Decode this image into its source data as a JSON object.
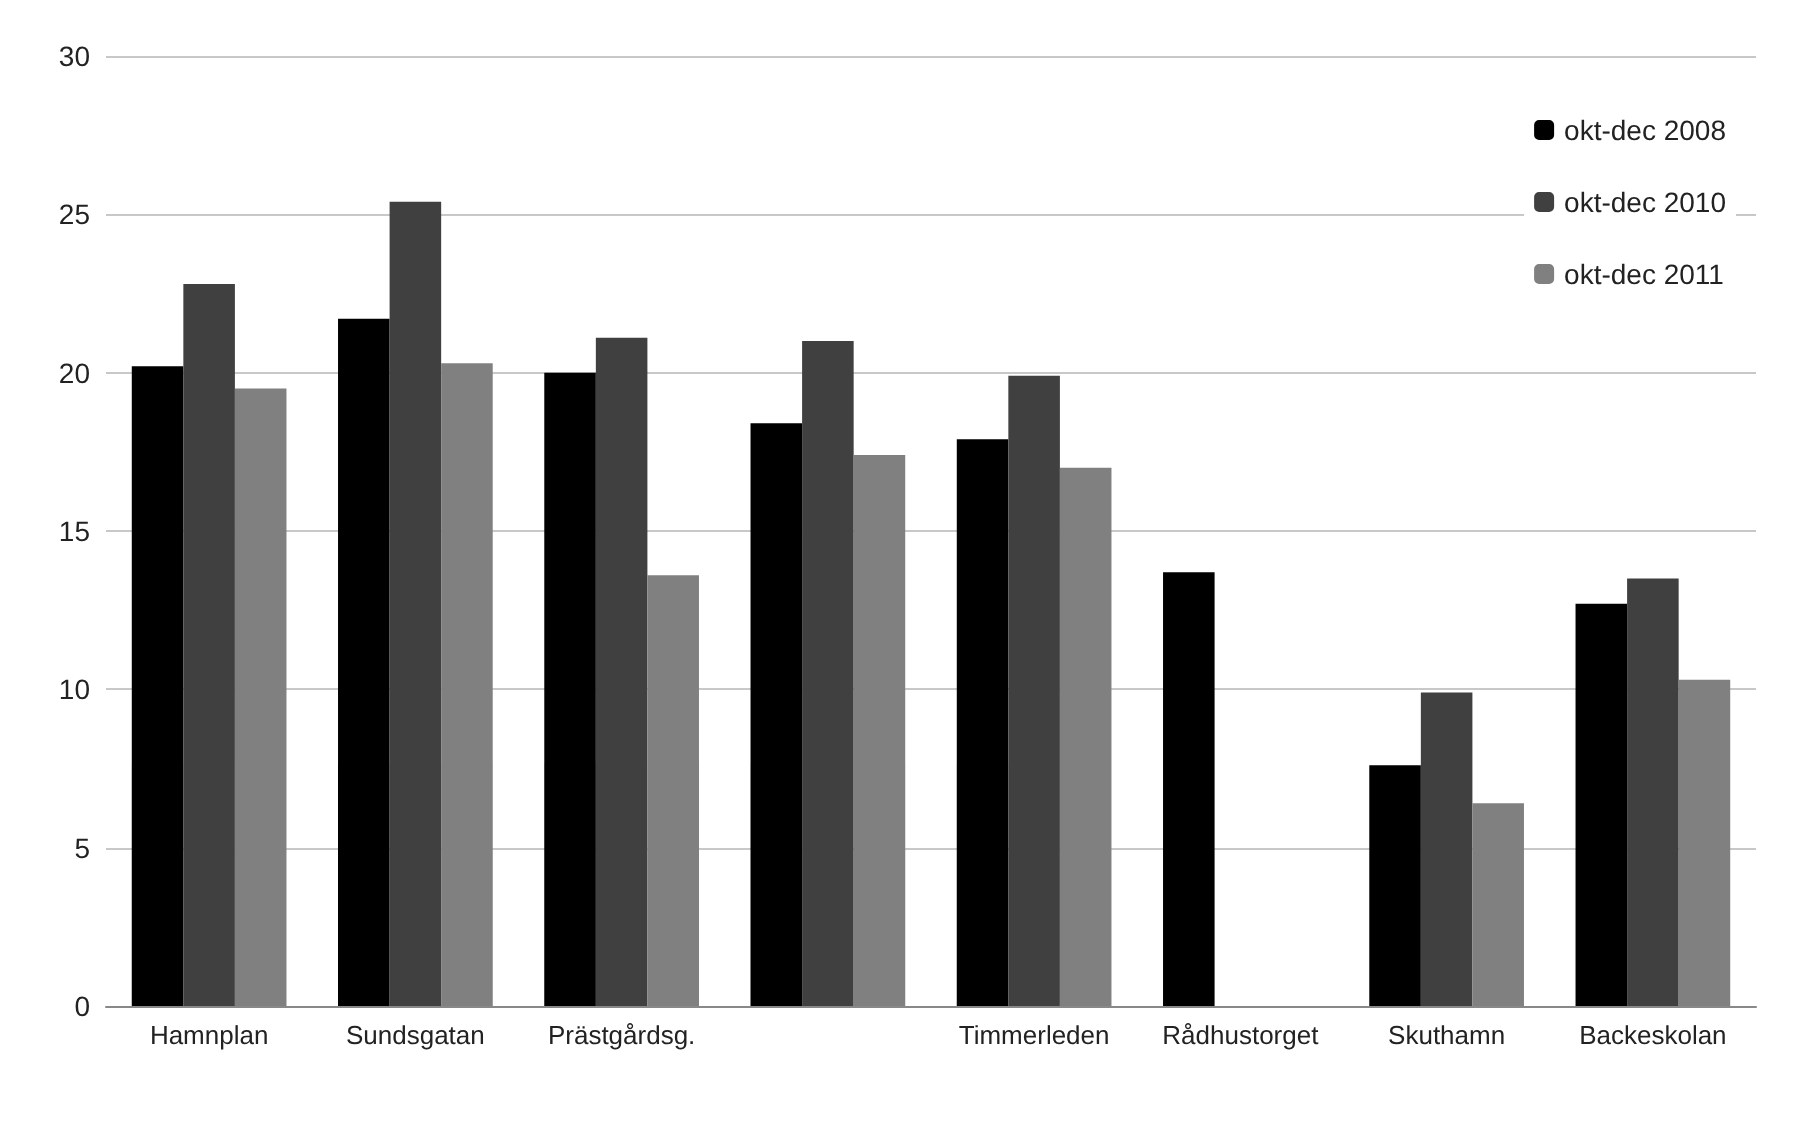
{
  "chart_data": {
    "type": "bar",
    "categories": [
      "Hamnplan",
      "Sundsgatan",
      "Prästgårdsg.",
      null,
      "Timmerleden",
      "Rådhustorget",
      "Skuthamn",
      "Backeskolan"
    ],
    "series": [
      {
        "name": "okt-dec 2008",
        "color": "#000000",
        "values": [
          20.2,
          21.7,
          20.0,
          18.4,
          17.9,
          13.7,
          7.6,
          12.7
        ]
      },
      {
        "name": "okt-dec 2010",
        "color": "#404040",
        "values": [
          22.8,
          25.4,
          21.1,
          21.0,
          19.9,
          null,
          9.9,
          13.5
        ]
      },
      {
        "name": "okt-dec 2011",
        "color": "#808080",
        "values": [
          19.5,
          20.3,
          13.6,
          17.4,
          17.0,
          null,
          6.4,
          10.3
        ]
      }
    ],
    "ylim": [
      0,
      30
    ],
    "yticks": [
      0,
      5,
      10,
      15,
      20,
      25,
      30
    ],
    "grid": "y",
    "legend": "top right"
  }
}
